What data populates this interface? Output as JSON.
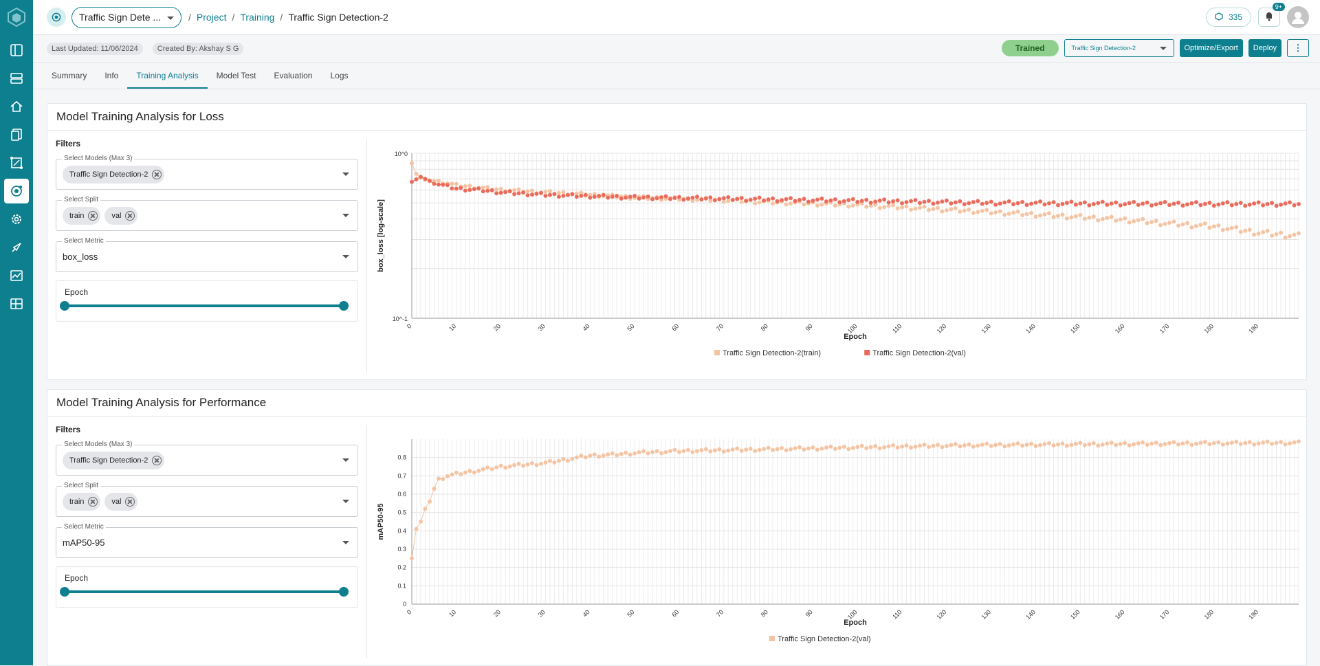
{
  "nav": {
    "items": [
      "logo-icon",
      "dashboard-icon",
      "dataset-icon",
      "home-icon",
      "documents-icon",
      "annotation-icon",
      "training-icon",
      "settings-icon",
      "deploy-icon",
      "monitor-icon",
      "report-icon"
    ]
  },
  "header": {
    "project_select": "Traffic Sign Dete ...",
    "breadcrumb": {
      "sep1": "/",
      "project": "Project",
      "sep2": "/",
      "training": "Training",
      "sep3": "/",
      "current": "Traffic Sign Detection-2"
    },
    "credits": "335",
    "notification_badge": "9+"
  },
  "infobar": {
    "last_updated": "Last Updated: 11/06/2024",
    "created_by": "Created By: Akshay S G",
    "status": "Trained",
    "model_select": "Traffic Sign Detection-2",
    "optimize_label": "Optimize/Export",
    "deploy_label": "Deploy",
    "more_label": "⋮"
  },
  "tabs": [
    "Summary",
    "Info",
    "Training Analysis",
    "Model Test",
    "Evaluation",
    "Logs"
  ],
  "active_tab": "Training Analysis",
  "colors": {
    "accent": "#0e7f8f",
    "train": "#f4c3a2",
    "val": "#ea6a5a",
    "trained_badge": "#8fd08f"
  },
  "loss_panel": {
    "title": "Model Training Analysis for Loss",
    "filters_title": "Filters",
    "models_label": "Select Models (Max 3)",
    "models": [
      "Traffic Sign Detection-2"
    ],
    "split_label": "Select Split",
    "splits": [
      "train",
      "val"
    ],
    "metric_label": "Select Metric",
    "metric": "box_loss",
    "epoch_label": "Epoch",
    "epoch_range": [
      0,
      199
    ]
  },
  "perf_panel": {
    "title": "Model Training Analysis for Performance",
    "filters_title": "Filters",
    "models_label": "Select Models (Max 3)",
    "models": [
      "Traffic Sign Detection-2"
    ],
    "split_label": "Select Split",
    "splits": [
      "train",
      "val"
    ],
    "metric_label": "Select Metric",
    "metric": "mAP50-95",
    "epoch_label": "Epoch",
    "epoch_range": [
      0,
      199
    ]
  },
  "chart_data": [
    {
      "type": "scatter",
      "xlabel": "Epoch",
      "ylabel": "box_loss [log-scale]",
      "yscale": "log",
      "ylim": [
        0.1,
        1.0
      ],
      "ytick_labels": [
        "10^0",
        "10^-1"
      ],
      "xticks": [
        0,
        10,
        20,
        30,
        40,
        50,
        60,
        70,
        80,
        90,
        100,
        110,
        120,
        130,
        140,
        150,
        160,
        170,
        180,
        190
      ],
      "xlim": [
        0,
        199
      ],
      "grid": true,
      "legend_position": "bottom",
      "series": [
        {
          "name": "Traffic Sign Detection-2(train)",
          "color": "#f4c3a2",
          "keypoints": [
            [
              0,
              0.87
            ],
            [
              1,
              0.75
            ],
            [
              2,
              0.71
            ],
            [
              3,
              0.69
            ],
            [
              5,
              0.68
            ],
            [
              8,
              0.66
            ],
            [
              10,
              0.64
            ],
            [
              15,
              0.62
            ],
            [
              20,
              0.6
            ],
            [
              30,
              0.58
            ],
            [
              40,
              0.56
            ],
            [
              50,
              0.54
            ],
            [
              60,
              0.53
            ],
            [
              70,
              0.52
            ],
            [
              80,
              0.505
            ],
            [
              90,
              0.495
            ],
            [
              100,
              0.485
            ],
            [
              110,
              0.47
            ],
            [
              120,
              0.455
            ],
            [
              130,
              0.44
            ],
            [
              140,
              0.425
            ],
            [
              150,
              0.41
            ],
            [
              160,
              0.395
            ],
            [
              170,
              0.375
            ],
            [
              180,
              0.36
            ],
            [
              190,
              0.33
            ],
            [
              199,
              0.315
            ]
          ]
        },
        {
          "name": "Traffic Sign Detection-2(val)",
          "color": "#ea6a5a",
          "keypoints": [
            [
              0,
              0.67
            ],
            [
              2,
              0.72
            ],
            [
              4,
              0.68
            ],
            [
              6,
              0.65
            ],
            [
              8,
              0.63
            ],
            [
              10,
              0.61
            ],
            [
              15,
              0.6
            ],
            [
              20,
              0.58
            ],
            [
              30,
              0.56
            ],
            [
              40,
              0.55
            ],
            [
              50,
              0.54
            ],
            [
              60,
              0.535
            ],
            [
              70,
              0.53
            ],
            [
              80,
              0.525
            ],
            [
              90,
              0.52
            ],
            [
              100,
              0.515
            ],
            [
              110,
              0.51
            ],
            [
              120,
              0.505
            ],
            [
              130,
              0.5
            ],
            [
              140,
              0.498
            ],
            [
              150,
              0.496
            ],
            [
              160,
              0.495
            ],
            [
              170,
              0.494
            ],
            [
              180,
              0.493
            ],
            [
              190,
              0.492
            ],
            [
              199,
              0.492
            ]
          ]
        }
      ]
    },
    {
      "type": "scatter",
      "xlabel": "Epoch",
      "ylabel": "mAP50-95",
      "ylim": [
        0,
        0.9
      ],
      "yticks": [
        0,
        0.1,
        0.2,
        0.3,
        0.4,
        0.5,
        0.6,
        0.7,
        0.8
      ],
      "xticks": [
        0,
        10,
        20,
        30,
        40,
        50,
        60,
        70,
        80,
        90,
        100,
        110,
        120,
        130,
        140,
        150,
        160,
        170,
        180,
        190
      ],
      "xlim": [
        0,
        199
      ],
      "grid": true,
      "legend_position": "bottom",
      "series": [
        {
          "name": "Traffic Sign Detection-2(val)",
          "color": "#f4c3a2",
          "keypoints": [
            [
              0,
              0.25
            ],
            [
              1,
              0.41
            ],
            [
              2,
              0.45
            ],
            [
              3,
              0.52
            ],
            [
              4,
              0.56
            ],
            [
              5,
              0.63
            ],
            [
              6,
              0.68
            ],
            [
              8,
              0.7
            ],
            [
              10,
              0.71
            ],
            [
              15,
              0.73
            ],
            [
              20,
              0.75
            ],
            [
              25,
              0.76
            ],
            [
              30,
              0.77
            ],
            [
              35,
              0.79
            ],
            [
              40,
              0.81
            ],
            [
              45,
              0.815
            ],
            [
              50,
              0.825
            ],
            [
              60,
              0.835
            ],
            [
              70,
              0.84
            ],
            [
              80,
              0.845
            ],
            [
              90,
              0.85
            ],
            [
              100,
              0.855
            ],
            [
              110,
              0.86
            ],
            [
              120,
              0.865
            ],
            [
              130,
              0.868
            ],
            [
              140,
              0.87
            ],
            [
              150,
              0.872
            ],
            [
              160,
              0.874
            ],
            [
              170,
              0.876
            ],
            [
              180,
              0.878
            ],
            [
              190,
              0.879
            ],
            [
              199,
              0.88
            ]
          ]
        }
      ]
    }
  ]
}
